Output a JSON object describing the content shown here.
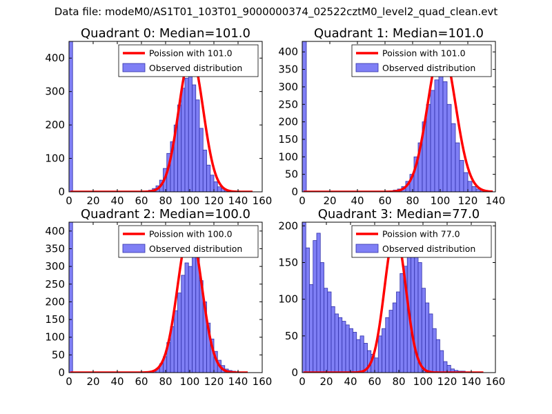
{
  "figure_title": "Data file: modeM0/AS1T01_103T01_9000000374_02522cztM0_level2_quad_clean.evt",
  "colors": {
    "bar_fill": "#7f7ff5",
    "bar_edge": "#3030a8",
    "poisson_line": "#ff0000"
  },
  "chart_data": [
    {
      "type": "bar",
      "title": "Quadrant 0: Median=101.0",
      "xlim": [
        0,
        160
      ],
      "ylim": [
        0,
        450
      ],
      "xticks": [
        0,
        20,
        40,
        60,
        80,
        100,
        120,
        140,
        160
      ],
      "yticks": [
        0,
        100,
        200,
        300,
        400
      ],
      "bin_width": 3,
      "bin_starts": [
        0,
        66,
        69,
        72,
        75,
        78,
        81,
        84,
        87,
        90,
        93,
        96,
        99,
        102,
        105,
        108,
        111,
        114,
        117,
        120,
        123,
        126,
        129,
        132,
        135
      ],
      "values": [
        450,
        5,
        10,
        18,
        35,
        70,
        115,
        150,
        200,
        260,
        310,
        340,
        345,
        320,
        275,
        190,
        125,
        80,
        50,
        30,
        15,
        10,
        5,
        3,
        2
      ],
      "poisson_lambda": 101.0,
      "poisson_peak": 410,
      "poisson_x_range": [
        1,
        152
      ],
      "legend": [
        "Poission with 101.0",
        "Observed distribution"
      ]
    },
    {
      "type": "bar",
      "title": "Quadrant 1: Median=101.0",
      "xlim": [
        0,
        140
      ],
      "ylim": [
        0,
        430
      ],
      "xticks": [
        0,
        20,
        40,
        60,
        80,
        100,
        120,
        140
      ],
      "yticks": [
        0,
        50,
        100,
        150,
        200,
        250,
        300,
        350,
        400
      ],
      "bin_width": 3,
      "bin_starts": [
        0,
        63,
        66,
        69,
        72,
        75,
        78,
        81,
        84,
        87,
        90,
        93,
        96,
        99,
        102,
        105,
        108,
        111,
        114,
        117,
        120,
        123,
        126,
        129,
        132,
        135
      ],
      "values": [
        430,
        3,
        5,
        8,
        15,
        30,
        50,
        100,
        140,
        200,
        250,
        290,
        320,
        350,
        315,
        250,
        195,
        140,
        90,
        55,
        30,
        15,
        8,
        5,
        3,
        2
      ],
      "poisson_lambda": 101.0,
      "poisson_peak": 415,
      "poisson_x_range": [
        1,
        138
      ],
      "legend": [
        "Poission with 101.0",
        "Observed distribution"
      ]
    },
    {
      "type": "bar",
      "title": "Quadrant 2: Median=100.0",
      "xlim": [
        0,
        160
      ],
      "ylim": [
        0,
        425
      ],
      "xticks": [
        0,
        20,
        40,
        60,
        80,
        100,
        120,
        140,
        160
      ],
      "yticks": [
        0,
        50,
        100,
        150,
        200,
        250,
        300,
        350,
        400
      ],
      "bin_width": 3,
      "bin_starts": [
        0,
        66,
        69,
        72,
        75,
        78,
        81,
        84,
        87,
        90,
        93,
        96,
        99,
        102,
        105,
        108,
        111,
        114,
        117,
        120,
        123,
        126,
        129,
        132,
        135,
        138,
        141
      ],
      "values": [
        425,
        3,
        6,
        12,
        25,
        45,
        85,
        130,
        175,
        225,
        275,
        310,
        300,
        340,
        330,
        260,
        200,
        140,
        95,
        60,
        35,
        20,
        10,
        6,
        4,
        2,
        2
      ],
      "poisson_lambda": 100.0,
      "poisson_peak": 405,
      "poisson_x_range": [
        1,
        148
      ],
      "legend": [
        "Poission with 100.0",
        "Observed distribution"
      ]
    },
    {
      "type": "bar",
      "title": "Quadrant 3: Median=77.0",
      "xlim": [
        0,
        160
      ],
      "ylim": [
        0,
        205
      ],
      "xticks": [
        0,
        20,
        40,
        60,
        80,
        100,
        120,
        140,
        160
      ],
      "yticks": [
        0,
        50,
        100,
        150,
        200
      ],
      "bin_width": 3,
      "bin_starts": [
        0,
        3,
        6,
        9,
        12,
        15,
        18,
        21,
        24,
        27,
        30,
        33,
        36,
        39,
        42,
        45,
        48,
        51,
        54,
        57,
        60,
        63,
        66,
        69,
        72,
        75,
        78,
        81,
        84,
        87,
        90,
        93,
        96,
        99,
        102,
        105,
        108,
        111,
        114,
        117,
        120,
        123,
        126,
        129,
        132,
        135,
        138,
        141
      ],
      "values": [
        205,
        170,
        120,
        180,
        190,
        150,
        115,
        110,
        90,
        80,
        75,
        70,
        65,
        60,
        55,
        45,
        50,
        40,
        30,
        25,
        20,
        50,
        60,
        75,
        85,
        95,
        110,
        135,
        145,
        165,
        175,
        195,
        150,
        115,
        95,
        80,
        60,
        45,
        30,
        15,
        10,
        5,
        3,
        2,
        2,
        1,
        1,
        1
      ],
      "poisson_lambda": 77.0,
      "poisson_peak": 192,
      "poisson_x_range": [
        1,
        150
      ],
      "legend": [
        "Poission with 77.0",
        "Observed distribution"
      ]
    }
  ]
}
